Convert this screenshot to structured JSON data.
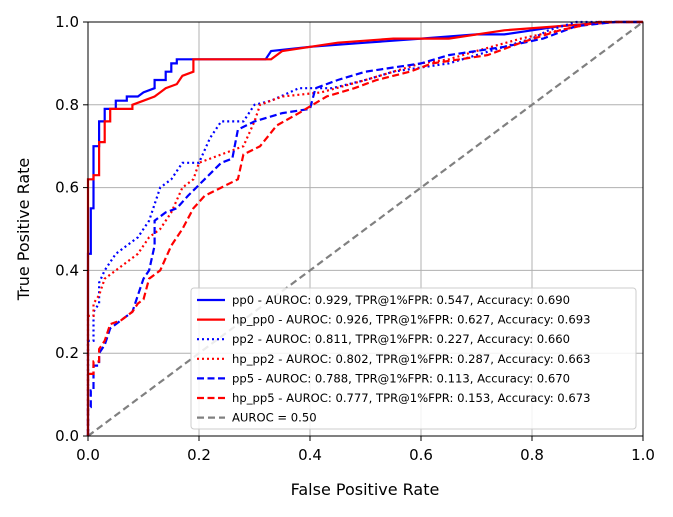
{
  "chart_data": {
    "type": "line",
    "title": "",
    "xlabel": "False Positive Rate",
    "ylabel": "True Positive Rate",
    "xlim": [
      0.0,
      1.0
    ],
    "ylim": [
      0.0,
      1.0
    ],
    "xticks": [
      "0.0",
      "0.2",
      "0.4",
      "0.6",
      "0.8",
      "1.0"
    ],
    "yticks": [
      "0.0",
      "0.2",
      "0.4",
      "0.6",
      "0.8",
      "1.0"
    ],
    "grid": true,
    "legend_position": "bottom-right",
    "series": [
      {
        "name": "pp0 - AUROC: 0.929, TPR@1%FPR: 0.547, Accuracy: 0.690",
        "color": "#0000ff",
        "style": "solid",
        "points": [
          [
            0,
            0
          ],
          [
            0,
            0.44
          ],
          [
            0.005,
            0.44
          ],
          [
            0.005,
            0.55
          ],
          [
            0.01,
            0.55
          ],
          [
            0.01,
            0.7
          ],
          [
            0.02,
            0.7
          ],
          [
            0.02,
            0.76
          ],
          [
            0.03,
            0.76
          ],
          [
            0.03,
            0.79
          ],
          [
            0.05,
            0.79
          ],
          [
            0.05,
            0.81
          ],
          [
            0.07,
            0.81
          ],
          [
            0.07,
            0.82
          ],
          [
            0.09,
            0.82
          ],
          [
            0.1,
            0.83
          ],
          [
            0.12,
            0.84
          ],
          [
            0.12,
            0.86
          ],
          [
            0.14,
            0.86
          ],
          [
            0.14,
            0.88
          ],
          [
            0.15,
            0.88
          ],
          [
            0.15,
            0.9
          ],
          [
            0.16,
            0.9
          ],
          [
            0.16,
            0.91
          ],
          [
            0.32,
            0.91
          ],
          [
            0.33,
            0.93
          ],
          [
            0.4,
            0.94
          ],
          [
            0.5,
            0.95
          ],
          [
            0.6,
            0.96
          ],
          [
            0.7,
            0.97
          ],
          [
            0.75,
            0.97
          ],
          [
            0.8,
            0.98
          ],
          [
            0.85,
            0.99
          ],
          [
            0.95,
            1.0
          ],
          [
            1.0,
            1.0
          ]
        ]
      },
      {
        "name": "hp_pp0 - AUROC: 0.926, TPR@1%FPR: 0.627, Accuracy: 0.693",
        "color": "#ff0000",
        "style": "solid",
        "points": [
          [
            0,
            0
          ],
          [
            0,
            0.62
          ],
          [
            0.01,
            0.62
          ],
          [
            0.01,
            0.63
          ],
          [
            0.02,
            0.63
          ],
          [
            0.02,
            0.71
          ],
          [
            0.03,
            0.71
          ],
          [
            0.03,
            0.76
          ],
          [
            0.04,
            0.76
          ],
          [
            0.04,
            0.79
          ],
          [
            0.08,
            0.79
          ],
          [
            0.08,
            0.8
          ],
          [
            0.1,
            0.81
          ],
          [
            0.12,
            0.82
          ],
          [
            0.13,
            0.83
          ],
          [
            0.14,
            0.84
          ],
          [
            0.16,
            0.85
          ],
          [
            0.17,
            0.87
          ],
          [
            0.19,
            0.88
          ],
          [
            0.19,
            0.91
          ],
          [
            0.33,
            0.91
          ],
          [
            0.35,
            0.93
          ],
          [
            0.45,
            0.95
          ],
          [
            0.55,
            0.96
          ],
          [
            0.65,
            0.96
          ],
          [
            0.75,
            0.98
          ],
          [
            0.85,
            0.99
          ],
          [
            0.95,
            1.0
          ],
          [
            1.0,
            1.0
          ]
        ]
      },
      {
        "name": "pp2 - AUROC: 0.811, TPR@1%FPR: 0.227, Accuracy: 0.660",
        "color": "#0000ff",
        "style": "dotted",
        "points": [
          [
            0,
            0
          ],
          [
            0,
            0.23
          ],
          [
            0.01,
            0.23
          ],
          [
            0.01,
            0.3
          ],
          [
            0.02,
            0.32
          ],
          [
            0.02,
            0.37
          ],
          [
            0.03,
            0.4
          ],
          [
            0.04,
            0.42
          ],
          [
            0.05,
            0.44
          ],
          [
            0.07,
            0.46
          ],
          [
            0.09,
            0.48
          ],
          [
            0.1,
            0.5
          ],
          [
            0.11,
            0.52
          ],
          [
            0.12,
            0.56
          ],
          [
            0.13,
            0.6
          ],
          [
            0.15,
            0.62
          ],
          [
            0.17,
            0.66
          ],
          [
            0.2,
            0.66
          ],
          [
            0.22,
            0.72
          ],
          [
            0.24,
            0.76
          ],
          [
            0.28,
            0.76
          ],
          [
            0.3,
            0.8
          ],
          [
            0.33,
            0.81
          ],
          [
            0.38,
            0.84
          ],
          [
            0.44,
            0.84
          ],
          [
            0.5,
            0.86
          ],
          [
            0.55,
            0.88
          ],
          [
            0.6,
            0.89
          ],
          [
            0.65,
            0.9
          ],
          [
            0.7,
            0.92
          ],
          [
            0.75,
            0.94
          ],
          [
            0.8,
            0.96
          ],
          [
            0.83,
            0.98
          ],
          [
            0.88,
            1.0
          ],
          [
            1.0,
            1.0
          ]
        ]
      },
      {
        "name": "hp_pp2 - AUROC: 0.802, TPR@1%FPR: 0.287, Accuracy: 0.663",
        "color": "#ff0000",
        "style": "dotted",
        "points": [
          [
            0,
            0
          ],
          [
            0,
            0.29
          ],
          [
            0.01,
            0.29
          ],
          [
            0.01,
            0.32
          ],
          [
            0.02,
            0.34
          ],
          [
            0.03,
            0.38
          ],
          [
            0.05,
            0.4
          ],
          [
            0.07,
            0.42
          ],
          [
            0.09,
            0.44
          ],
          [
            0.11,
            0.48
          ],
          [
            0.13,
            0.5
          ],
          [
            0.15,
            0.54
          ],
          [
            0.17,
            0.6
          ],
          [
            0.19,
            0.62
          ],
          [
            0.2,
            0.66
          ],
          [
            0.24,
            0.68
          ],
          [
            0.28,
            0.7
          ],
          [
            0.3,
            0.76
          ],
          [
            0.31,
            0.8
          ],
          [
            0.35,
            0.82
          ],
          [
            0.42,
            0.83
          ],
          [
            0.5,
            0.86
          ],
          [
            0.55,
            0.88
          ],
          [
            0.6,
            0.9
          ],
          [
            0.65,
            0.91
          ],
          [
            0.7,
            0.93
          ],
          [
            0.78,
            0.96
          ],
          [
            0.85,
            0.98
          ],
          [
            0.92,
            1.0
          ],
          [
            1.0,
            1.0
          ]
        ]
      },
      {
        "name": "pp5 - AUROC: 0.788, TPR@1%FPR: 0.113, Accuracy: 0.670",
        "color": "#0000ff",
        "style": "dashed",
        "points": [
          [
            0,
            0
          ],
          [
            0,
            0.07
          ],
          [
            0.005,
            0.07
          ],
          [
            0.005,
            0.11
          ],
          [
            0.01,
            0.11
          ],
          [
            0.01,
            0.17
          ],
          [
            0.02,
            0.17
          ],
          [
            0.02,
            0.2
          ],
          [
            0.03,
            0.22
          ],
          [
            0.04,
            0.26
          ],
          [
            0.06,
            0.28
          ],
          [
            0.08,
            0.3
          ],
          [
            0.09,
            0.34
          ],
          [
            0.1,
            0.38
          ],
          [
            0.11,
            0.4
          ],
          [
            0.12,
            0.46
          ],
          [
            0.12,
            0.52
          ],
          [
            0.14,
            0.54
          ],
          [
            0.16,
            0.55
          ],
          [
            0.18,
            0.58
          ],
          [
            0.21,
            0.62
          ],
          [
            0.24,
            0.66
          ],
          [
            0.26,
            0.67
          ],
          [
            0.27,
            0.74
          ],
          [
            0.3,
            0.76
          ],
          [
            0.35,
            0.78
          ],
          [
            0.4,
            0.79
          ],
          [
            0.41,
            0.84
          ],
          [
            0.45,
            0.86
          ],
          [
            0.5,
            0.88
          ],
          [
            0.55,
            0.89
          ],
          [
            0.6,
            0.9
          ],
          [
            0.65,
            0.92
          ],
          [
            0.7,
            0.93
          ],
          [
            0.75,
            0.94
          ],
          [
            0.82,
            0.96
          ],
          [
            0.88,
            0.99
          ],
          [
            0.95,
            1.0
          ],
          [
            1.0,
            1.0
          ]
        ]
      },
      {
        "name": "hp_pp5 - AUROC: 0.777, TPR@1%FPR: 0.153, Accuracy: 0.673",
        "color": "#ff0000",
        "style": "dashed",
        "points": [
          [
            0,
            0
          ],
          [
            0,
            0.15
          ],
          [
            0.01,
            0.15
          ],
          [
            0.01,
            0.18
          ],
          [
            0.02,
            0.18
          ],
          [
            0.02,
            0.21
          ],
          [
            0.03,
            0.23
          ],
          [
            0.04,
            0.27
          ],
          [
            0.06,
            0.28
          ],
          [
            0.08,
            0.3
          ],
          [
            0.09,
            0.32
          ],
          [
            0.1,
            0.33
          ],
          [
            0.11,
            0.38
          ],
          [
            0.13,
            0.4
          ],
          [
            0.15,
            0.46
          ],
          [
            0.17,
            0.5
          ],
          [
            0.19,
            0.55
          ],
          [
            0.21,
            0.58
          ],
          [
            0.24,
            0.6
          ],
          [
            0.27,
            0.62
          ],
          [
            0.28,
            0.68
          ],
          [
            0.31,
            0.7
          ],
          [
            0.34,
            0.75
          ],
          [
            0.38,
            0.78
          ],
          [
            0.43,
            0.82
          ],
          [
            0.48,
            0.84
          ],
          [
            0.52,
            0.86
          ],
          [
            0.58,
            0.88
          ],
          [
            0.62,
            0.9
          ],
          [
            0.67,
            0.91
          ],
          [
            0.72,
            0.92
          ],
          [
            0.78,
            0.95
          ],
          [
            0.85,
            0.98
          ],
          [
            0.92,
            1.0
          ],
          [
            1.0,
            1.0
          ]
        ]
      },
      {
        "name": "AUROC = 0.50",
        "color": "#808080",
        "style": "dashed-gray",
        "points": [
          [
            0,
            0
          ],
          [
            1,
            1
          ]
        ]
      }
    ]
  }
}
